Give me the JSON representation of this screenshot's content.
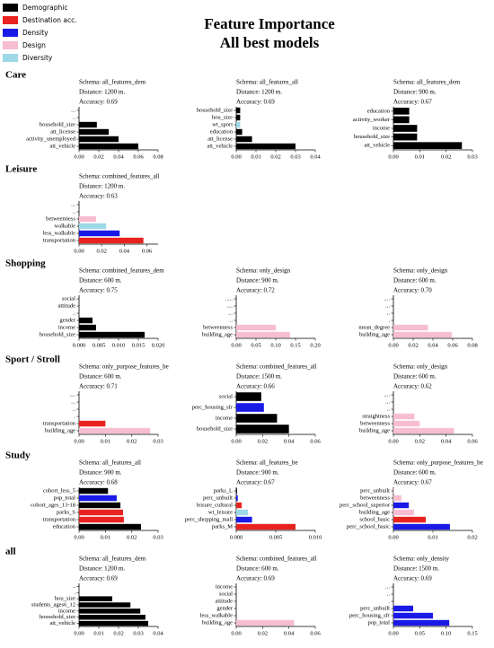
{
  "title": [
    "Feature Importance",
    "All best models"
  ],
  "legend": [
    {
      "name": "Demographic",
      "color": "#000000"
    },
    {
      "name": "Destination acc.",
      "color": "#e8231f"
    },
    {
      "name": "Density",
      "color": "#1a1ae6"
    },
    {
      "name": "Design",
      "color": "#f7bdd0"
    },
    {
      "name": "Diversity",
      "color": "#9dd8e6"
    }
  ],
  "rows": [
    "Care",
    "Leisure",
    "Shopping",
    "Sport / Stroll",
    "Study",
    "all"
  ],
  "chart_data": [
    {
      "type": "barh",
      "subtitle": [
        "Schema: all_features_dem",
        "Distance: 1200 m.",
        "Accuracy: 0.69"
      ],
      "categories": [
        "...",
        "..",
        "household_size",
        "att_license",
        "activity_unemployed",
        "att_vehicle"
      ],
      "values": [
        0,
        0,
        0.018,
        0.03,
        0.04,
        0.06
      ],
      "colors": [
        "#000000",
        "#000000",
        "#000000",
        "#000000",
        "#000000",
        "#000000"
      ],
      "xlim": [
        0,
        0.08
      ],
      "xticks": [
        {
          "value": 0,
          "label": "0.00"
        },
        {
          "value": 0.02,
          "label": "0.02"
        },
        {
          "value": 0.04,
          "label": "0.04"
        },
        {
          "value": 0.06,
          "label": "0.06"
        },
        {
          "value": 0.08,
          "label": "0.08"
        }
      ]
    },
    {
      "type": "barh",
      "subtitle": [
        "Schema: all_features_all",
        "Distance: 1200 m.",
        "Accuracy: 0.69"
      ],
      "categories": [
        "household_size",
        "hou_size",
        "wt_sport",
        "education",
        "att_license",
        "att_vehicle"
      ],
      "values": [
        0.002,
        0.002,
        0.002,
        0.003,
        0.008,
        0.03
      ],
      "colors": [
        "#000000",
        "#000000",
        "#9dd8e6",
        "#000000",
        "#000000",
        "#000000"
      ],
      "xlim": [
        0,
        0.04
      ],
      "xticks": [
        {
          "value": 0,
          "label": "0.00"
        },
        {
          "value": 0.01,
          "label": "0.01"
        },
        {
          "value": 0.02,
          "label": "0.02"
        },
        {
          "value": 0.03,
          "label": "0.03"
        },
        {
          "value": 0.04,
          "label": "0.04"
        }
      ]
    },
    {
      "type": "barh",
      "subtitle": [
        "Schema: all_features_dem",
        "Distance: 900 m.",
        "Accuracy: 0.67"
      ],
      "categories": [
        "education",
        "activity_worker",
        "income",
        "household_size",
        "att_vehicle"
      ],
      "values": [
        0.006,
        0.006,
        0.009,
        0.009,
        0.026
      ],
      "colors": [
        "#000000",
        "#000000",
        "#000000",
        "#000000",
        "#000000"
      ],
      "xlim": [
        0,
        0.03
      ],
      "xticks": [
        {
          "value": 0,
          "label": "0.00"
        },
        {
          "value": 0.01,
          "label": "0.01"
        },
        {
          "value": 0.02,
          "label": "0.02"
        },
        {
          "value": 0.03,
          "label": "0.03"
        }
      ]
    },
    {
      "type": "barh",
      "subtitle": [
        "Schema: combined_features_all",
        "Distance: 1200 m.",
        "Accuracy: 0.63"
      ],
      "categories": [
        "...",
        "..",
        "betweenness",
        "walkable",
        "less_walkable",
        "transportation"
      ],
      "values": [
        0,
        0,
        0.015,
        0.024,
        0.036,
        0.057
      ],
      "colors": [
        "#000000",
        "#000000",
        "#f7bdd0",
        "#9dd8e6",
        "#1a1ae6",
        "#e8231f"
      ],
      "xlim": [
        0,
        0.07
      ],
      "xticks": [
        {
          "value": 0,
          "label": "0.00"
        },
        {
          "value": 0.02,
          "label": "0.02"
        },
        {
          "value": 0.04,
          "label": "0.04"
        },
        {
          "value": 0.06,
          "label": "0.06"
        }
      ]
    },
    {
      "type": "barh",
      "subtitle": [
        "Schema: combined_features_dem",
        "Distance: 600 m.",
        "Accuracy: 0.75"
      ],
      "categories": [
        "social",
        "attitude",
        "..",
        "gender",
        "income",
        "household_size"
      ],
      "values": [
        0,
        0,
        0,
        0.0034,
        0.0043,
        0.0166
      ],
      "colors": [
        "#000000",
        "#000000",
        "#000000",
        "#000000",
        "#000000",
        "#000000"
      ],
      "xlim": [
        0,
        0.02
      ],
      "xticks": [
        {
          "value": 0,
          "label": "0.000"
        },
        {
          "value": 0.005,
          "label": "0.005"
        },
        {
          "value": 0.01,
          "label": "0.010"
        },
        {
          "value": 0.015,
          "label": "0.015"
        },
        {
          "value": 0.02,
          "label": "0.020"
        }
      ]
    },
    {
      "type": "barh",
      "subtitle": [
        "Schema: only_design",
        "Distance: 900 m.",
        "Accuracy: 0.72"
      ],
      "categories": [
        ".....",
        "....",
        "...",
        "..",
        "betweenness",
        "building_age"
      ],
      "values": [
        0,
        0,
        0,
        0,
        0.1,
        0.136
      ],
      "colors": [
        "#f7bdd0",
        "#f7bdd0",
        "#f7bdd0",
        "#f7bdd0",
        "#f7bdd0",
        "#f7bdd0"
      ],
      "xlim": [
        0,
        0.2
      ],
      "xticks": [
        {
          "value": 0,
          "label": "0.00"
        },
        {
          "value": 0.05,
          "label": "0.05"
        },
        {
          "value": 0.1,
          "label": "0.10"
        },
        {
          "value": 0.15,
          "label": "0.15"
        },
        {
          "value": 0.2,
          "label": "0.20"
        }
      ]
    },
    {
      "type": "barh",
      "subtitle": [
        "Schema: only_design",
        "Distance: 600 m.",
        "Accuracy: 0.70"
      ],
      "categories": [
        "....",
        "...",
        "..",
        ".",
        "mean_degree",
        "building_age"
      ],
      "values": [
        0,
        0,
        0,
        0,
        0.035,
        0.059
      ],
      "colors": [
        "#f7bdd0",
        "#f7bdd0",
        "#f7bdd0",
        "#f7bdd0",
        "#f7bdd0",
        "#f7bdd0"
      ],
      "xlim": [
        0,
        0.08
      ],
      "xticks": [
        {
          "value": 0,
          "label": "0.00"
        },
        {
          "value": 0.02,
          "label": "0.02"
        },
        {
          "value": 0.04,
          "label": "0.04"
        },
        {
          "value": 0.06,
          "label": "0.06"
        },
        {
          "value": 0.08,
          "label": "0.08"
        }
      ]
    },
    {
      "type": "barh",
      "subtitle": [
        "Schema: only_purpose_features_be",
        "Distance: 600 m.",
        "Accuracy: 0.71"
      ],
      "categories": [
        "....",
        "...",
        "..",
        ".",
        "transportation",
        "building_age"
      ],
      "values": [
        0,
        0,
        0,
        0,
        0.01,
        0.027
      ],
      "colors": [
        "#000000",
        "#000000",
        "#000000",
        "#000000",
        "#e8231f",
        "#f7bdd0"
      ],
      "xlim": [
        0,
        0.03
      ],
      "xticks": [
        {
          "value": 0,
          "label": "0.00"
        },
        {
          "value": 0.01,
          "label": "0.01"
        },
        {
          "value": 0.02,
          "label": "0.02"
        },
        {
          "value": 0.03,
          "label": "0.03"
        }
      ]
    },
    {
      "type": "barh",
      "subtitle": [
        "Schema: combined_features_all",
        "Distance: 1500 m.",
        "Accuracy: 0.66"
      ],
      "categories": [
        "social",
        "perc_housing_sfr",
        "income",
        "household_size"
      ],
      "values": [
        0.019,
        0.021,
        0.031,
        0.04
      ],
      "colors": [
        "#000000",
        "#1a1ae6",
        "#000000",
        "#000000"
      ],
      "xlim": [
        0,
        0.06
      ],
      "xticks": [
        {
          "value": 0,
          "label": "0.00"
        },
        {
          "value": 0.02,
          "label": "0.02"
        },
        {
          "value": 0.04,
          "label": "0.04"
        },
        {
          "value": 0.06,
          "label": "0.06"
        }
      ]
    },
    {
      "type": "barh",
      "subtitle": [
        "Schema: only_design",
        "Distance: 600 m.",
        "Accuracy: 0.62"
      ],
      "categories": [
        "....",
        "...",
        "..",
        "straightness",
        "betweenness",
        "building_age"
      ],
      "values": [
        0,
        0,
        0,
        0.016,
        0.02,
        0.046
      ],
      "colors": [
        "#f7bdd0",
        "#f7bdd0",
        "#f7bdd0",
        "#f7bdd0",
        "#f7bdd0",
        "#f7bdd0"
      ],
      "xlim": [
        0,
        0.06
      ],
      "xticks": [
        {
          "value": 0,
          "label": "0.00"
        },
        {
          "value": 0.02,
          "label": "0.02"
        },
        {
          "value": 0.04,
          "label": "0.04"
        },
        {
          "value": 0.06,
          "label": "0.06"
        }
      ]
    },
    {
      "type": "barh",
      "subtitle": [
        "Schema: all_features_all",
        "Distance: 900 m.",
        "Accuracy: 0.68"
      ],
      "categories": [
        "cohort_less_5",
        "pop_total",
        "cohort_ages_13-18",
        "parks_S",
        "transportation",
        "education"
      ],
      "values": [
        0.011,
        0.0143,
        0.0157,
        0.0167,
        0.017,
        0.0235
      ],
      "colors": [
        "#000000",
        "#1a1ae6",
        "#000000",
        "#e8231f",
        "#e8231f",
        "#000000"
      ],
      "xlim": [
        0,
        0.03
      ],
      "xticks": [
        {
          "value": 0,
          "label": "0.00"
        },
        {
          "value": 0.01,
          "label": "0.01"
        },
        {
          "value": 0.02,
          "label": "0.02"
        },
        {
          "value": 0.03,
          "label": "0.03"
        }
      ]
    },
    {
      "type": "barh",
      "subtitle": [
        "Schema: all_features_be",
        "Distance: 900 m.",
        "Accuracy: 0.67"
      ],
      "categories": [
        "parks_L",
        "perc_unbuilt",
        "leisure_cultural",
        "wt_leisure",
        "perc_shopping_mall",
        "parks_M"
      ],
      "values": [
        0.0001,
        0.0002,
        0.0007,
        0.0015,
        0.002,
        0.0075
      ],
      "colors": [
        "#000000",
        "#1a1ae6",
        "#e8231f",
        "#9dd8e6",
        "#1a1ae6",
        "#e8231f"
      ],
      "xlim": [
        0,
        0.01
      ],
      "xticks": [
        {
          "value": 0,
          "label": "0.000"
        },
        {
          "value": 0.005,
          "label": "0.005"
        },
        {
          "value": 0.01,
          "label": "0.010"
        }
      ]
    },
    {
      "type": "barh",
      "subtitle": [
        "Schema: only_purpose_features_be",
        "Distance: 600 m.",
        "Accuracy: 0.67"
      ],
      "categories": [
        "perc_unbuilt",
        "betweenness",
        "perc_school_superior",
        "building_age",
        "school_basic",
        "perc_school_basic"
      ],
      "values": [
        0.0002,
        0.002,
        0.0039,
        0.0052,
        0.0082,
        0.0143
      ],
      "colors": [
        "#f7bdd0",
        "#f7bdd0",
        "#1a1ae6",
        "#f7bdd0",
        "#e8231f",
        "#1a1ae6"
      ],
      "xlim": [
        0,
        0.02
      ],
      "xticks": [
        {
          "value": 0,
          "label": "0.00"
        },
        {
          "value": 0.01,
          "label": "0.01"
        },
        {
          "value": 0.02,
          "label": "0.02"
        }
      ]
    },
    {
      "type": "barh",
      "subtitle": [
        "Schema: all_features_dem",
        "Distance: 1200 m.",
        "Accuracy: 0.69"
      ],
      "categories": [
        "..",
        ".",
        "hou_size",
        "students_ages6_12",
        "income",
        "household_size",
        "att_vehicle"
      ],
      "values": [
        0,
        0,
        0.0168,
        0.026,
        0.031,
        0.0336,
        0.035
      ],
      "colors": [
        "#000000",
        "#000000",
        "#000000",
        "#000000",
        "#000000",
        "#000000",
        "#000000"
      ],
      "xlim": [
        0,
        0.04
      ],
      "xticks": [
        {
          "value": 0,
          "label": "0.00"
        },
        {
          "value": 0.01,
          "label": "0.01"
        },
        {
          "value": 0.02,
          "label": "0.02"
        },
        {
          "value": 0.03,
          "label": "0.03"
        },
        {
          "value": 0.04,
          "label": "0.04"
        }
      ]
    },
    {
      "type": "barh",
      "subtitle": [
        "Schema: combined_features_all",
        "Distance: 600 m.",
        "Accuracy: 0.69"
      ],
      "categories": [
        "income",
        "social",
        "attitude",
        "gender",
        "less_walkable",
        "building_age"
      ],
      "values": [
        0,
        0,
        0,
        0,
        0,
        0.044
      ],
      "colors": [
        "#000000",
        "#000000",
        "#000000",
        "#000000",
        "#9dd8e6",
        "#f7bdd0"
      ],
      "xlim": [
        0,
        0.06
      ],
      "xticks": [
        {
          "value": 0,
          "label": "0.00"
        },
        {
          "value": 0.02,
          "label": "0.02"
        },
        {
          "value": 0.04,
          "label": "0.04"
        },
        {
          "value": 0.06,
          "label": "0.06"
        }
      ]
    },
    {
      "type": "barh",
      "subtitle": [
        "Schema: only_density",
        "Distance: 1500 m.",
        "Accuracy: 0.69"
      ],
      "categories": [
        "...",
        "..",
        ".",
        "perc_unbuilt",
        "perc_housing_sfr",
        "pop_total"
      ],
      "values": [
        0,
        0,
        0,
        0.0375,
        0.075,
        0.106
      ],
      "colors": [
        "#1a1ae6",
        "#1a1ae6",
        "#1a1ae6",
        "#1a1ae6",
        "#1a1ae6",
        "#1a1ae6"
      ],
      "xlim": [
        0,
        0.15
      ],
      "xticks": [
        {
          "value": 0,
          "label": "0.00"
        },
        {
          "value": 0.05,
          "label": "0.05"
        },
        {
          "value": 0.1,
          "label": "0.10"
        },
        {
          "value": 0.15,
          "label": "0.15"
        }
      ]
    }
  ]
}
